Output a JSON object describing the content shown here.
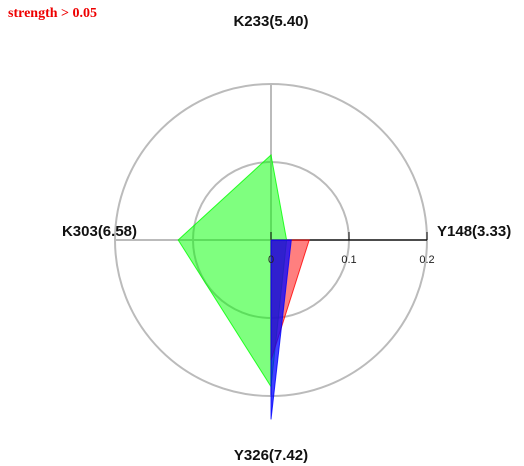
{
  "chart_data": {
    "type": "radar",
    "annotation": "strength > 0.05",
    "categories": [
      "Y148(3.33)",
      "K233(5.40)",
      "K303(6.58)",
      "Y326(7.42)"
    ],
    "rlim": [
      0,
      0.2
    ],
    "rticks": [
      0,
      0.1,
      0.2
    ],
    "grid": true,
    "series": [
      {
        "color": "#00ff00",
        "values": [
          0.02,
          0.109,
          0.119,
          0.188
        ]
      },
      {
        "color": "#ff0000",
        "values": [
          0.049,
          0,
          0,
          0.154
        ]
      },
      {
        "color": "#0000ff",
        "values": [
          0.026,
          0,
          0,
          0.23
        ]
      }
    ]
  }
}
